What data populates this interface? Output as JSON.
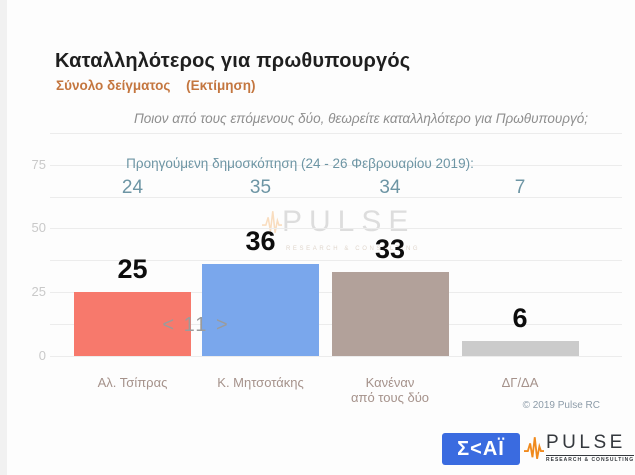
{
  "header": {
    "title": "Καταλληλότερος για πρωθυπουργός",
    "subtitle_sample": "Σύνολο δείγματος",
    "subtitle_note": "(Εκτίμηση)",
    "question": "Ποιον από τους επόμενους δύο, θεωρείτε καταλληλότερο για Πρωθυπουργό;"
  },
  "chart_data": {
    "type": "bar",
    "title": "Καταλληλότερος για πρωθυπουργός",
    "categories": [
      "Αλ. Τσίπρας",
      "Κ. Μητσοτάκης",
      "Κανέναν\nαπό τους δύο",
      "ΔΓ/ΔΑ"
    ],
    "series": [
      {
        "name": "Εκτίμηση",
        "values": [
          25,
          36,
          33,
          6
        ]
      },
      {
        "name": "Προηγούμενη δημοσκόπηση (24 - 26 Φεβρουαρίου 2019)",
        "values": [
          24,
          35,
          34,
          7
        ]
      }
    ],
    "previous_header": "Προηγούμενη δημοσκόπηση (24 - 26 Φεβρουαρίου 2019):",
    "difference_annotation": "< 11 >",
    "xlabel": "",
    "ylabel": "",
    "y_ticks": [
      0,
      25,
      50,
      75
    ],
    "ylim": [
      0,
      87.5
    ],
    "grid": true,
    "legend_position": "none",
    "bar_colors": [
      "#f7796c",
      "#7aa7ec",
      "#b2a19a",
      "#cbcbcb"
    ]
  },
  "watermark": {
    "name": "PULSE",
    "tagline": "RESEARCH & CONSULTING"
  },
  "footer": {
    "copyright": "© 2019 Pulse RC",
    "skai_logo": "Σ<ΑΪ",
    "pulse_logo": "PULSE",
    "pulse_tagline": "RESEARCH & CONSULTING"
  },
  "colors": {
    "accent_orange": "#c4763f",
    "teal": "#6d95a4",
    "skai_blue": "#3a6be0",
    "pulse_orange": "#f08a1d",
    "grid": "#ececec"
  }
}
